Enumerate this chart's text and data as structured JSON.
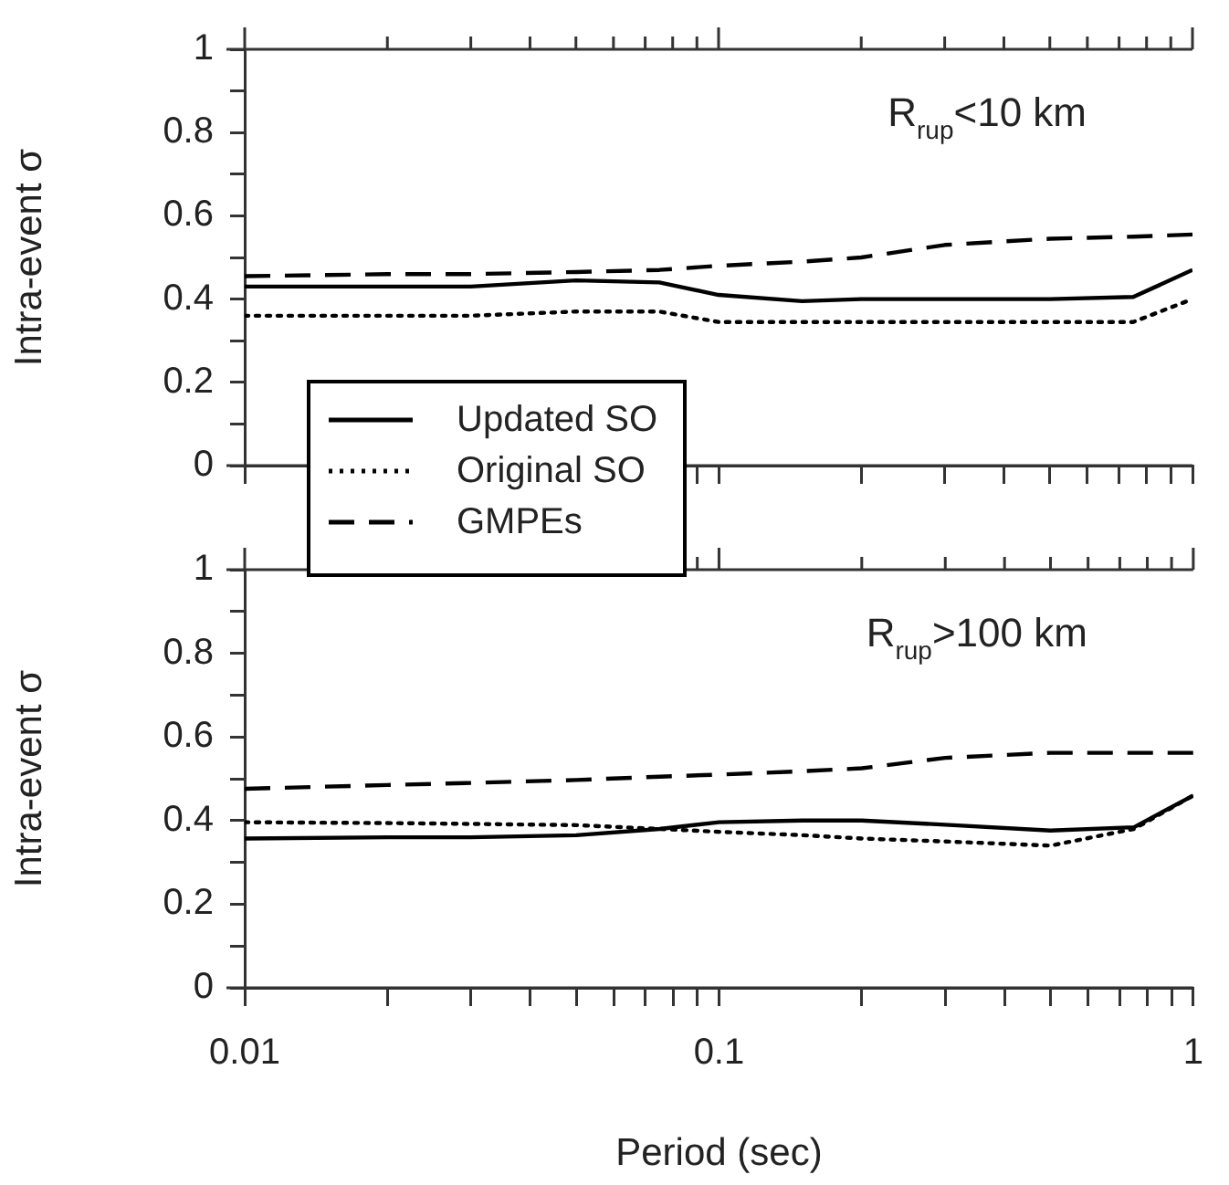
{
  "chart_data": [
    {
      "type": "line",
      "ylabel": "Intra-event σ",
      "annotations": [
        "R$_{rup}$<10 km"
      ],
      "log": "x",
      "grid": false,
      "legend": "bottom left",
      "tick_labels": "y",
      "marker": "none",
      "x": [
        0.01,
        0.02,
        0.03,
        0.05,
        0.075,
        0.1,
        0.15,
        0.2,
        0.3,
        0.5,
        0.75,
        1
      ],
      "xlim": [
        0.01,
        1
      ],
      "ylim": [
        0,
        1
      ],
      "xticks": [
        {
          "value": 0.01,
          "label": null
        },
        {
          "value": 0.02,
          "label": null
        },
        {
          "value": 0.03,
          "label": null
        },
        {
          "value": 0.04,
          "label": null
        },
        {
          "value": 0.05,
          "label": null
        },
        {
          "value": 0.06,
          "label": null
        },
        {
          "value": 0.07,
          "label": null
        },
        {
          "value": 0.08,
          "label": null
        },
        {
          "value": 0.09,
          "label": null
        },
        {
          "value": 0.1,
          "label": null
        },
        {
          "value": 0.2,
          "label": null
        },
        {
          "value": 0.3,
          "label": null
        },
        {
          "value": 0.4,
          "label": null
        },
        {
          "value": 0.5,
          "label": null
        },
        {
          "value": 0.6,
          "label": null
        },
        {
          "value": 0.7,
          "label": null
        },
        {
          "value": 0.8,
          "label": null
        },
        {
          "value": 0.9,
          "label": null
        },
        {
          "value": 1,
          "label": null
        }
      ],
      "yticks": [
        0,
        {
          "value": 0.1,
          "label": null
        },
        0.2,
        {
          "value": 0.3,
          "label": null
        },
        0.4,
        {
          "value": 0.5,
          "label": null
        },
        0.6,
        {
          "value": 0.7,
          "label": null
        },
        0.8,
        {
          "value": 0.9,
          "label": null
        },
        1
      ],
      "series": [
        {
          "name": "Updated SO",
          "color": "#000000",
          "line_style": "solid",
          "values": [
            0.43,
            0.43,
            0.43,
            0.445,
            0.44,
            0.41,
            0.395,
            0.4,
            0.4,
            0.4,
            0.405,
            0.47
          ]
        },
        {
          "name": "Original SO",
          "color": "#000000",
          "line_style": "dotted",
          "values": [
            0.36,
            0.36,
            0.36,
            0.37,
            0.37,
            0.345,
            0.345,
            0.345,
            0.345,
            0.345,
            0.345,
            0.4
          ]
        },
        {
          "name": "GMPEs",
          "color": "#000000",
          "line_style": "dashed",
          "values": [
            0.455,
            0.46,
            0.46,
            0.465,
            0.47,
            0.48,
            0.49,
            0.5,
            0.53,
            0.545,
            0.55,
            0.555
          ]
        }
      ]
    },
    {
      "type": "line",
      "xlabel": "Period (sec)",
      "ylabel": "Intra-event σ",
      "annotations": [
        "R$_{rup}$>100 km"
      ],
      "log": "x",
      "grid": false,
      "marker": "none",
      "x": [
        0.01,
        0.02,
        0.03,
        0.05,
        0.075,
        0.1,
        0.15,
        0.2,
        0.3,
        0.5,
        0.75,
        1
      ],
      "xlim": [
        0.01,
        1
      ],
      "ylim": [
        0,
        1
      ],
      "xticks": [
        {
          "value": 0.01,
          "label": "0.01"
        },
        {
          "value": 0.02,
          "label": null
        },
        {
          "value": 0.03,
          "label": null
        },
        {
          "value": 0.04,
          "label": null
        },
        {
          "value": 0.05,
          "label": null
        },
        {
          "value": 0.06,
          "label": null
        },
        {
          "value": 0.07,
          "label": null
        },
        {
          "value": 0.08,
          "label": null
        },
        {
          "value": 0.09,
          "label": null
        },
        {
          "value": 0.1,
          "label": "0.1"
        },
        {
          "value": 0.2,
          "label": null
        },
        {
          "value": 0.3,
          "label": null
        },
        {
          "value": 0.4,
          "label": null
        },
        {
          "value": 0.5,
          "label": null
        },
        {
          "value": 0.6,
          "label": null
        },
        {
          "value": 0.7,
          "label": null
        },
        {
          "value": 0.8,
          "label": null
        },
        {
          "value": 0.9,
          "label": null
        },
        {
          "value": 1,
          "label": "1"
        }
      ],
      "yticks": [
        0,
        {
          "value": 0.1,
          "label": null
        },
        0.2,
        {
          "value": 0.3,
          "label": null
        },
        0.4,
        {
          "value": 0.5,
          "label": null
        },
        0.6,
        {
          "value": 0.7,
          "label": null
        },
        0.8,
        {
          "value": 0.9,
          "label": null
        },
        1
      ],
      "series": [
        {
          "color": "#000000",
          "line_style": "solid",
          "values": [
            0.357,
            0.36,
            0.36,
            0.365,
            0.38,
            0.396,
            0.4,
            0.4,
            0.39,
            0.376,
            0.384,
            0.46
          ]
        },
        {
          "color": "#000000",
          "line_style": "dotted",
          "values": [
            0.396,
            0.394,
            0.392,
            0.389,
            0.38,
            0.373,
            0.365,
            0.357,
            0.35,
            0.34,
            0.38,
            0.46
          ]
        },
        {
          "color": "#000000",
          "line_style": "dashed",
          "values": [
            0.476,
            0.485,
            0.49,
            0.497,
            0.505,
            0.51,
            0.518,
            0.525,
            0.55,
            0.562,
            0.562,
            0.562
          ]
        }
      ]
    }
  ]
}
